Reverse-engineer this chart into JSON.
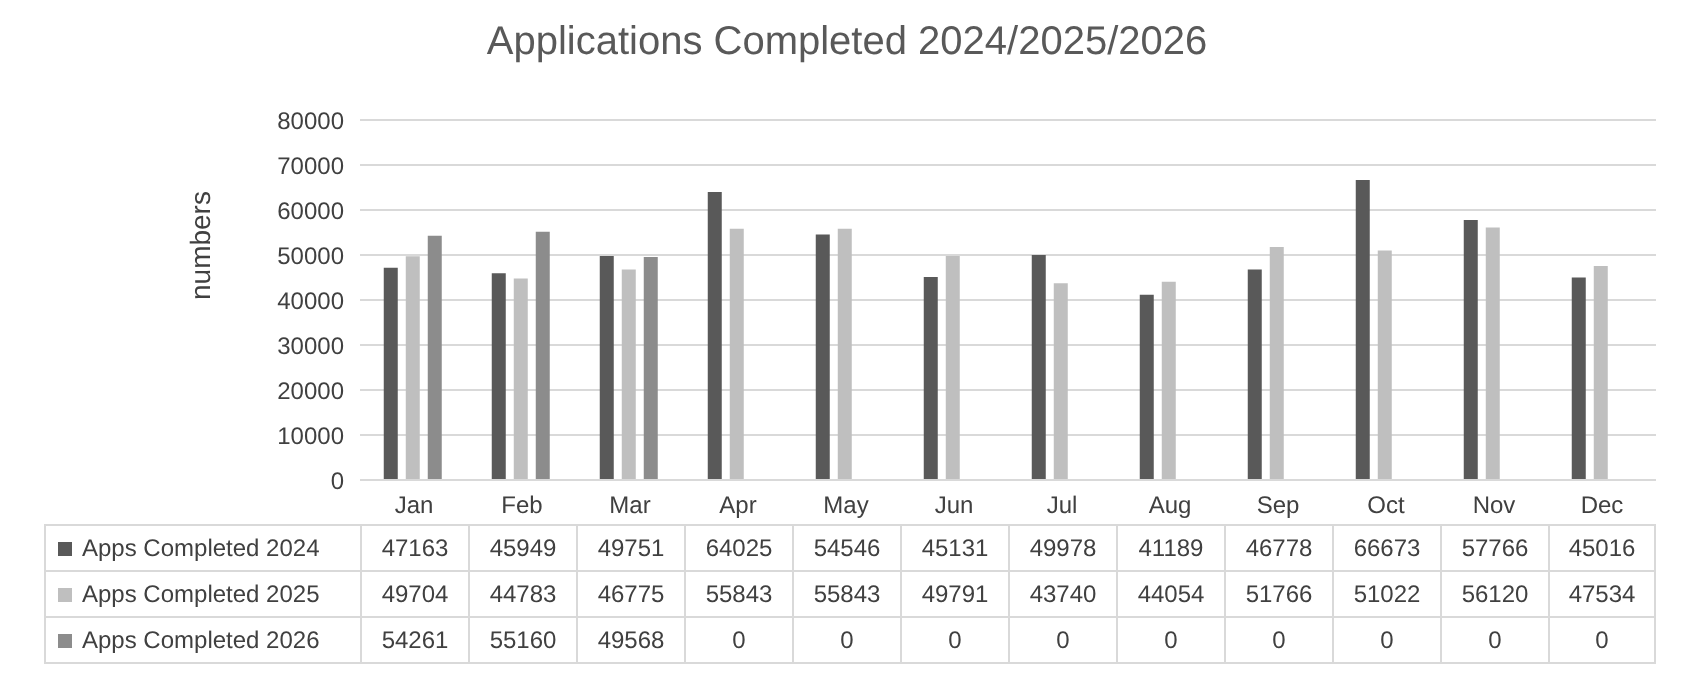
{
  "chart_data": {
    "type": "bar",
    "title": "Applications Completed 2024/2025/2026",
    "ylabel": "numbers",
    "categories": [
      "Jan",
      "Feb",
      "Mar",
      "Apr",
      "May",
      "Jun",
      "Jul",
      "Aug",
      "Sep",
      "Oct",
      "Nov",
      "Dec"
    ],
    "series": [
      {
        "name": "Apps Completed 2024",
        "color": "#595959",
        "values": [
          47163,
          45949,
          49751,
          64025,
          54546,
          45131,
          49978,
          41189,
          46778,
          66673,
          57766,
          45016
        ]
      },
      {
        "name": "Apps Completed 2025",
        "color": "#bfbfbf",
        "values": [
          49704,
          44783,
          46775,
          55843,
          55843,
          49791,
          43740,
          44054,
          51766,
          51022,
          56120,
          47534
        ]
      },
      {
        "name": "Apps Completed 2026",
        "color": "#8c8c8c",
        "values": [
          54261,
          55160,
          49568,
          0,
          0,
          0,
          0,
          0,
          0,
          0,
          0,
          0
        ]
      }
    ],
    "ylim": [
      0,
      80000
    ],
    "yticks": [
      0,
      10000,
      20000,
      30000,
      40000,
      50000,
      60000,
      70000,
      80000
    ],
    "grid": "y",
    "legend": "bottom",
    "data_labels": true
  }
}
